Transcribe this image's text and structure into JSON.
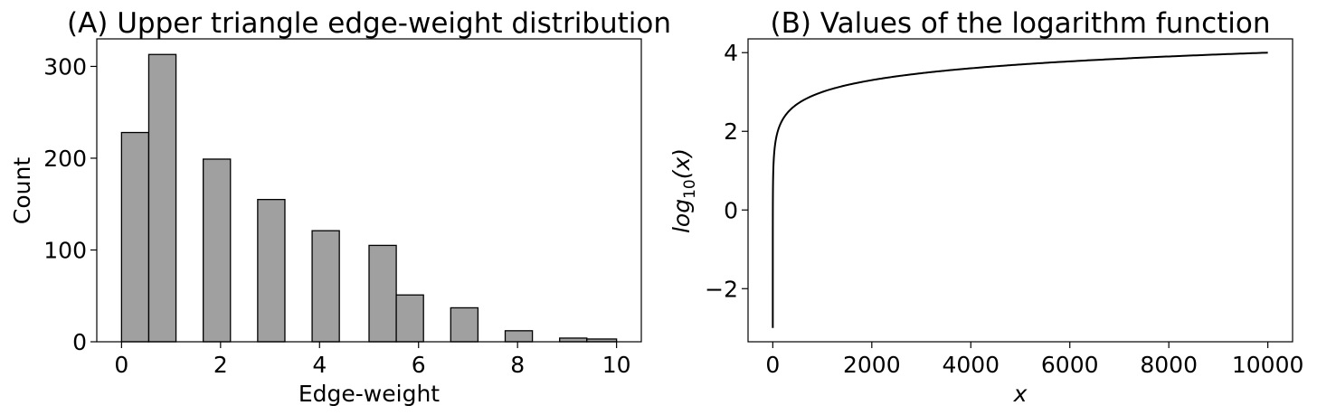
{
  "chart_data": [
    {
      "type": "bar",
      "title": "(A) Upper triangle edge-weight distribution",
      "xlabel": "Edge-weight",
      "ylabel": "Count",
      "xlim": [
        -0.5,
        10.5
      ],
      "ylim": [
        0,
        330
      ],
      "xticks": [
        "0",
        "2",
        "4",
        "6",
        "8",
        "10"
      ],
      "yticks": [
        "0",
        "100",
        "200",
        "300"
      ],
      "bars": [
        {
          "x0": 0.0,
          "x1": 0.55,
          "value": 228
        },
        {
          "x0": 0.55,
          "x1": 1.1,
          "value": 313
        },
        {
          "x0": 1.65,
          "x1": 2.2,
          "value": 199
        },
        {
          "x0": 2.75,
          "x1": 3.3,
          "value": 155
        },
        {
          "x0": 3.85,
          "x1": 4.4,
          "value": 121
        },
        {
          "x0": 5.0,
          "x1": 5.55,
          "value": 105
        },
        {
          "x0": 5.55,
          "x1": 6.1,
          "value": 51
        },
        {
          "x0": 6.65,
          "x1": 7.2,
          "value": 37
        },
        {
          "x0": 7.75,
          "x1": 8.3,
          "value": 12
        },
        {
          "x0": 8.85,
          "x1": 9.4,
          "value": 4
        },
        {
          "x0": 9.4,
          "x1": 10.0,
          "value": 3
        }
      ],
      "bar_color": "#a0a0a0",
      "edge_color": "#000000",
      "grid": false
    },
    {
      "type": "line",
      "title": "(B) Values of the logarithm function",
      "xlabel": "x",
      "ylabel_main": "log",
      "ylabel_sub": "10",
      "ylabel_tail": "(x)",
      "xlim": [
        -500,
        10500
      ],
      "ylim": [
        -3.35,
        4.35
      ],
      "xticks": [
        "0",
        "2000",
        "4000",
        "6000",
        "8000",
        "10000"
      ],
      "yticks": [
        "−2",
        "0",
        "2",
        "4"
      ],
      "series": [
        {
          "function": "log10",
          "x_start": 0.001,
          "x_end": 10000
        }
      ],
      "line_color": "#000000",
      "grid": false
    }
  ]
}
